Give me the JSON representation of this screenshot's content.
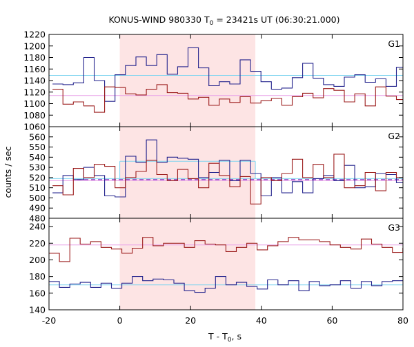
{
  "chart_data": {
    "type": "line",
    "title": "KONUS-WIND 980330 T",
    "title_sub": "0",
    "title_rest": " = 23421s UT (06:30:21.000)",
    "xlabel": "T - T",
    "xlabel_sub": "0",
    "xlabel_rest": ", s",
    "ylabel": "counts / sec",
    "xlim": [
      -20,
      80
    ],
    "x_ticks": [
      -20,
      0,
      20,
      40,
      60,
      80
    ],
    "interval": [
      0,
      38.3
    ],
    "colors": {
      "red": "#9b1b1b",
      "blue": "#22228c",
      "light_blue": "#7fd4f0",
      "pink": "#e8a0e8",
      "purple_dash": "#7a2bbf",
      "highlight": "#fde4e4"
    },
    "panels": [
      {
        "label": "G1",
        "ylim": [
          1060,
          1220
        ],
        "y_ticks": [
          1060,
          1080,
          1100,
          1120,
          1140,
          1160,
          1180,
          1200,
          1220
        ],
        "bin_x0": -19,
        "bin_width": 2.944,
        "series": [
          {
            "role": "blue_hist",
            "values": [
              1134,
              1133,
              1136,
              1180,
              1140,
              1104,
              1150,
              1166,
              1181,
              1166,
              1185,
              1151,
              1164,
              1197,
              1162,
              1131,
              1138,
              1134,
              1176,
              1156,
              1138,
              1125,
              1127,
              1145,
              1170,
              1144,
              1133,
              1130,
              1146,
              1150,
              1137,
              1143,
              1130,
              1163
            ]
          },
          {
            "role": "red_hist",
            "values": [
              1125,
              1099,
              1103,
              1096,
              1085,
              1129,
              1128,
              1117,
              1115,
              1125,
              1133,
              1119,
              1118,
              1108,
              1111,
              1097,
              1108,
              1102,
              1112,
              1101,
              1105,
              1109,
              1097,
              1112,
              1118,
              1110,
              1126,
              1123,
              1103,
              1117,
              1096,
              1129,
              1113,
              1107
            ]
          }
        ],
        "lines": [
          {
            "role": "light_blue",
            "value": 1149
          },
          {
            "role": "pink",
            "value": 1114
          }
        ],
        "step_line": null
      },
      {
        "label": "G2",
        "ylim": [
          480,
          570
        ],
        "y_ticks": [
          480,
          490,
          500,
          510,
          520,
          530,
          540,
          550,
          560
        ],
        "bin_x0": -19,
        "bin_width": 2.944,
        "series": [
          {
            "role": "blue_hist",
            "values": [
              505,
              522,
              518,
              530,
              522,
              502,
              501,
              541,
              535,
              557,
              535,
              540,
              539,
              538,
              520,
              525,
              537,
              517,
              537,
              524,
              502,
              520,
              505,
              516,
              505,
              519,
              522,
              517,
              532,
              510,
              511,
              524,
              523,
              515
            ]
          },
          {
            "role": "red_hist",
            "values": [
              512,
              503,
              529,
              520,
              533,
              531,
              510,
              520,
              526,
              537,
              523,
              517,
              528,
              519,
              510,
              534,
              522,
              511,
              521,
              494,
              520,
              517,
              524,
              538,
              520,
              533,
              520,
              543,
              510,
              512,
              525,
              507,
              525,
              520
            ]
          }
        ],
        "lines": [
          {
            "role": "light_blue",
            "value": 519
          },
          {
            "role": "pink",
            "value": 517
          }
        ],
        "step_line": {
          "role": "light_blue",
          "x": [
            0,
            38.3
          ],
          "value": 536
        },
        "dashed_line": {
          "role": "purple_dash",
          "x": [
            -12,
            80
          ],
          "value": 518
        }
      },
      {
        "label": "G3",
        "ylim": [
          140,
          250
        ],
        "y_ticks": [
          140,
          160,
          180,
          200,
          220,
          240
        ],
        "bin_x0": -20,
        "bin_width": 2.94,
        "series": [
          {
            "role": "red_hist",
            "values": [
              208,
              198,
              226,
              219,
              222,
              215,
              213,
              208,
              214,
              227,
              217,
              220,
              220,
              215,
              223,
              219,
              218,
              210,
              215,
              220,
              212,
              217,
              222,
              227,
              224,
              224,
              222,
              218,
              215,
              213,
              225,
              219,
              215,
              209,
              214,
              233,
              220
            ]
          },
          {
            "role": "blue_hist",
            "values": [
              174,
              167,
              171,
              173,
              167,
              172,
              166,
              172,
              180,
              175,
              177,
              176,
              172,
              163,
              161,
              166,
              180,
              170,
              173,
              168,
              165,
              176,
              170,
              175,
              163,
              174,
              169,
              170,
              175,
              166,
              174,
              169,
              174,
              175
            ]
          }
        ],
        "lines": [
          {
            "role": "pink",
            "value": 218
          },
          {
            "role": "light_blue",
            "value": 170
          }
        ],
        "step_line": null
      }
    ]
  }
}
